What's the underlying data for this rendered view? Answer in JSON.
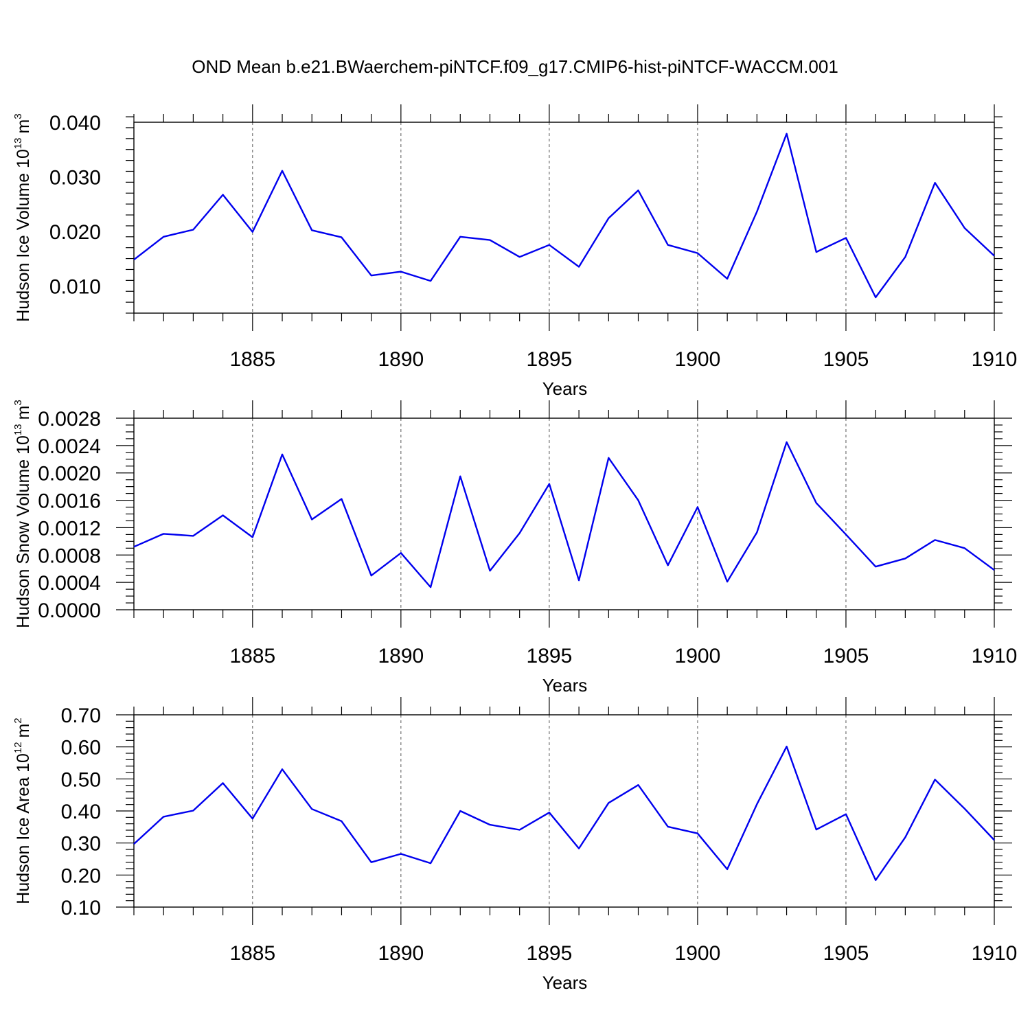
{
  "title": "OND Mean b.e21.BWaerchem-piNTCF.f09_g17.CMIP6-hist-piNTCF-WACCM.001",
  "colors": {
    "line": "#0000ee",
    "axis": "#000000",
    "grid": "#555555"
  },
  "chart_data": [
    {
      "type": "line",
      "ylabel_main": "Hudson Ice Volume 10",
      "ylabel_exp": "13",
      "ylabel_unit": "m",
      "ylabel_unit_exp": "3",
      "xlabel": "Years",
      "xlim": [
        1881,
        1910
      ],
      "ylim": [
        0.005,
        0.04
      ],
      "yticks": [
        0.01,
        0.02,
        0.03,
        0.04
      ],
      "ytick_labels": [
        "0.010",
        "0.020",
        "0.030",
        "0.040"
      ],
      "yminor": 0.002,
      "xticks": [
        1885,
        1890,
        1895,
        1900,
        1905,
        1910
      ],
      "xtick_labels": [
        "1885",
        "1890",
        "1895",
        "1900",
        "1905",
        "1910"
      ],
      "x": [
        1881,
        1882,
        1883,
        1884,
        1885,
        1886,
        1887,
        1888,
        1889,
        1890,
        1891,
        1892,
        1893,
        1894,
        1895,
        1896,
        1897,
        1898,
        1899,
        1900,
        1901,
        1902,
        1903,
        1904,
        1905,
        1906,
        1907,
        1908,
        1909,
        1910
      ],
      "values": [
        0.0148,
        0.019,
        0.0203,
        0.0267,
        0.0199,
        0.0311,
        0.0202,
        0.0189,
        0.0119,
        0.0126,
        0.0109,
        0.019,
        0.0184,
        0.0153,
        0.0175,
        0.0135,
        0.0224,
        0.0275,
        0.0175,
        0.016,
        0.0113,
        0.0236,
        0.0379,
        0.0162,
        0.0188,
        0.0079,
        0.0153,
        0.0289,
        0.0206,
        0.0155
      ]
    },
    {
      "type": "line",
      "ylabel_main": "Hudson Snow Volume 10",
      "ylabel_exp": "13",
      "ylabel_unit": "m",
      "ylabel_unit_exp": "3",
      "xlabel": "Years",
      "xlim": [
        1881,
        1910
      ],
      "ylim": [
        0.0,
        0.0028
      ],
      "yticks": [
        0.0,
        0.0004,
        0.0008,
        0.0012,
        0.0016,
        0.002,
        0.0024,
        0.0028
      ],
      "ytick_labels": [
        "0.0000",
        "0.0004",
        "0.0008",
        "0.0012",
        "0.0016",
        "0.0020",
        "0.0024",
        "0.0028"
      ],
      "yminor": 0.0001,
      "xticks": [
        1885,
        1890,
        1895,
        1900,
        1905,
        1910
      ],
      "xtick_labels": [
        "1885",
        "1890",
        "1895",
        "1900",
        "1905",
        "1910"
      ],
      "x": [
        1881,
        1882,
        1883,
        1884,
        1885,
        1886,
        1887,
        1888,
        1889,
        1890,
        1891,
        1892,
        1893,
        1894,
        1895,
        1896,
        1897,
        1898,
        1899,
        1900,
        1901,
        1902,
        1903,
        1904,
        1905,
        1906,
        1907,
        1908,
        1909,
        1910
      ],
      "values": [
        0.00092,
        0.00111,
        0.00108,
        0.00138,
        0.00106,
        0.00227,
        0.00132,
        0.00162,
        0.0005,
        0.00083,
        0.00033,
        0.00195,
        0.00057,
        0.00112,
        0.00184,
        0.00043,
        0.00222,
        0.0016,
        0.00065,
        0.0015,
        0.00041,
        0.00113,
        0.00245,
        0.00156,
        0.0011,
        0.00063,
        0.00075,
        0.00102,
        0.0009,
        0.00058
      ]
    },
    {
      "type": "line",
      "ylabel_main": "Hudson Ice Area 10",
      "ylabel_exp": "12",
      "ylabel_unit": "m",
      "ylabel_unit_exp": "2",
      "xlabel": "Years",
      "xlim": [
        1881,
        1910
      ],
      "ylim": [
        0.1,
        0.7
      ],
      "yticks": [
        0.1,
        0.2,
        0.3,
        0.4,
        0.5,
        0.6,
        0.7
      ],
      "ytick_labels": [
        "0.10",
        "0.20",
        "0.30",
        "0.40",
        "0.50",
        "0.60",
        "0.70"
      ],
      "yminor": 0.02,
      "xticks": [
        1885,
        1890,
        1895,
        1900,
        1905,
        1910
      ],
      "xtick_labels": [
        "1885",
        "1890",
        "1895",
        "1900",
        "1905",
        "1910"
      ],
      "x": [
        1881,
        1882,
        1883,
        1884,
        1885,
        1886,
        1887,
        1888,
        1889,
        1890,
        1891,
        1892,
        1893,
        1894,
        1895,
        1896,
        1897,
        1898,
        1899,
        1900,
        1901,
        1902,
        1903,
        1904,
        1905,
        1906,
        1907,
        1908,
        1909,
        1910
      ],
      "values": [
        0.297,
        0.382,
        0.401,
        0.487,
        0.376,
        0.53,
        0.406,
        0.368,
        0.24,
        0.266,
        0.237,
        0.4,
        0.357,
        0.341,
        0.395,
        0.283,
        0.425,
        0.481,
        0.351,
        0.33,
        0.218,
        0.421,
        0.601,
        0.342,
        0.39,
        0.184,
        0.318,
        0.498,
        0.407,
        0.309
      ]
    }
  ]
}
